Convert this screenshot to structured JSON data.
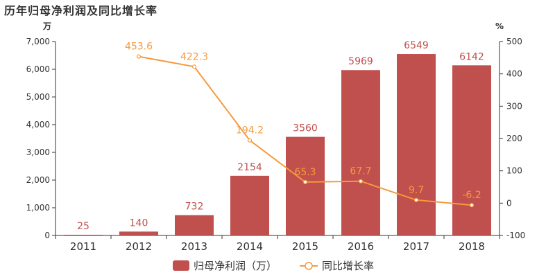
{
  "chart_data": {
    "type": "bar",
    "title": "历年归母净利润及同比增长率",
    "categories": [
      "2011",
      "2012",
      "2013",
      "2014",
      "2015",
      "2016",
      "2017",
      "2018"
    ],
    "series": [
      {
        "name": "归母净利润（万）",
        "type": "bar",
        "axis": "left",
        "values": [
          25,
          140,
          732,
          2154,
          3560,
          5969,
          6549,
          6142
        ],
        "labels": [
          "25",
          "140",
          "732",
          "2154",
          "3560",
          "5969",
          "6549",
          "6142"
        ]
      },
      {
        "name": "同比增长率",
        "type": "line",
        "axis": "right",
        "values": [
          null,
          453.6,
          422.3,
          194.2,
          65.3,
          67.7,
          9.7,
          -6.2
        ],
        "labels": [
          "",
          "453.6",
          "422.3",
          "194.2",
          "65.3",
          "67.7",
          "9.7",
          "-6.2"
        ]
      }
    ],
    "y_left": {
      "unit": "万",
      "ylim": [
        0,
        7000
      ],
      "ticks": [
        0,
        1000,
        2000,
        3000,
        4000,
        5000,
        6000,
        7000
      ],
      "tick_labels": [
        "0",
        "1,000",
        "2,000",
        "3,000",
        "4,000",
        "5,000",
        "6,000",
        "7,000"
      ]
    },
    "y_right": {
      "unit": "%",
      "ylim": [
        -100,
        500
      ],
      "ticks": [
        -100,
        0,
        100,
        200,
        300,
        400,
        500
      ],
      "tick_labels": [
        "-100",
        "0",
        "100",
        "200",
        "300",
        "400",
        "500"
      ]
    },
    "grid": false,
    "legend_position": "bottom-center",
    "colors": {
      "bar": "#c0504d",
      "bar_label": "#c0504d",
      "line": "#f59a3c",
      "line_label": "#f59a3c",
      "axis": "#333333"
    }
  }
}
